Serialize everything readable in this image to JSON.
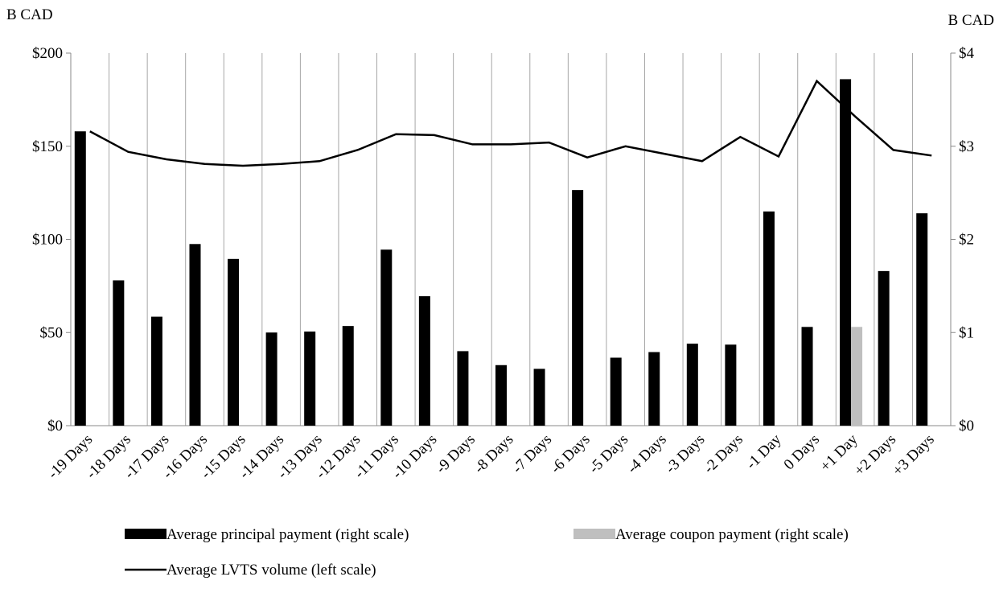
{
  "chart_data": {
    "type": "bar-line",
    "y_unit_label": "B CAD",
    "y2_unit_label": "B CAD",
    "categories": [
      "-19 Days",
      "-18 Days",
      "-17 Days",
      "-16 Days",
      "-15 Days",
      "-14 Days",
      "-13 Days",
      "-12 Days",
      "-11 Days",
      "-10 Days",
      "-9 Days",
      "-8 Days",
      "-7 Days",
      "-6 Days",
      "-5 Days",
      "-4 Days",
      "-3 Days",
      "-2 Days",
      "-1 Day",
      "0 Days",
      "+1 Day",
      "+2 Days",
      "+3 Days"
    ],
    "series": [
      {
        "name": "Average principal payment (right scale)",
        "kind": "bar",
        "axis": "y2",
        "color": "#000000",
        "values": [
          3.16,
          1.56,
          1.17,
          1.95,
          1.79,
          1.0,
          1.01,
          1.07,
          1.89,
          1.39,
          0.8,
          0.65,
          0.61,
          2.53,
          0.73,
          0.79,
          0.88,
          0.87,
          2.3,
          1.06,
          3.72,
          1.66,
          2.28
        ]
      },
      {
        "name": "Average coupon payment (right scale)",
        "kind": "bar",
        "axis": "y2",
        "color": "#bfbfbf",
        "values": [
          0,
          0,
          0,
          0,
          0,
          0,
          0,
          0,
          0,
          0,
          0,
          0,
          0,
          0,
          0,
          0,
          0,
          0,
          0,
          0,
          1.06,
          0,
          0
        ]
      },
      {
        "name": "Average LVTS volume (left scale)",
        "kind": "line",
        "axis": "y",
        "color": "#000000",
        "values": [
          158,
          147,
          143,
          140.5,
          139.5,
          140.5,
          142,
          148,
          156.5,
          156,
          151,
          151,
          152,
          144,
          150,
          146,
          142,
          155,
          144.5,
          185,
          166,
          148,
          145
        ]
      }
    ],
    "ylim": [
      0,
      200
    ],
    "yticks": [
      {
        "value": 0,
        "label": "$0"
      },
      {
        "value": 50,
        "label": "$50"
      },
      {
        "value": 100,
        "label": "$100"
      },
      {
        "value": 150,
        "label": "$150"
      },
      {
        "value": 200,
        "label": "$200"
      }
    ],
    "y2lim": [
      0,
      4
    ],
    "y2ticks": [
      {
        "value": 0,
        "label": "$0"
      },
      {
        "value": 1,
        "label": "$1"
      },
      {
        "value": 2,
        "label": "$2"
      },
      {
        "value": 3,
        "label": "$3"
      },
      {
        "value": 4,
        "label": "$4"
      }
    ],
    "grid": true
  }
}
